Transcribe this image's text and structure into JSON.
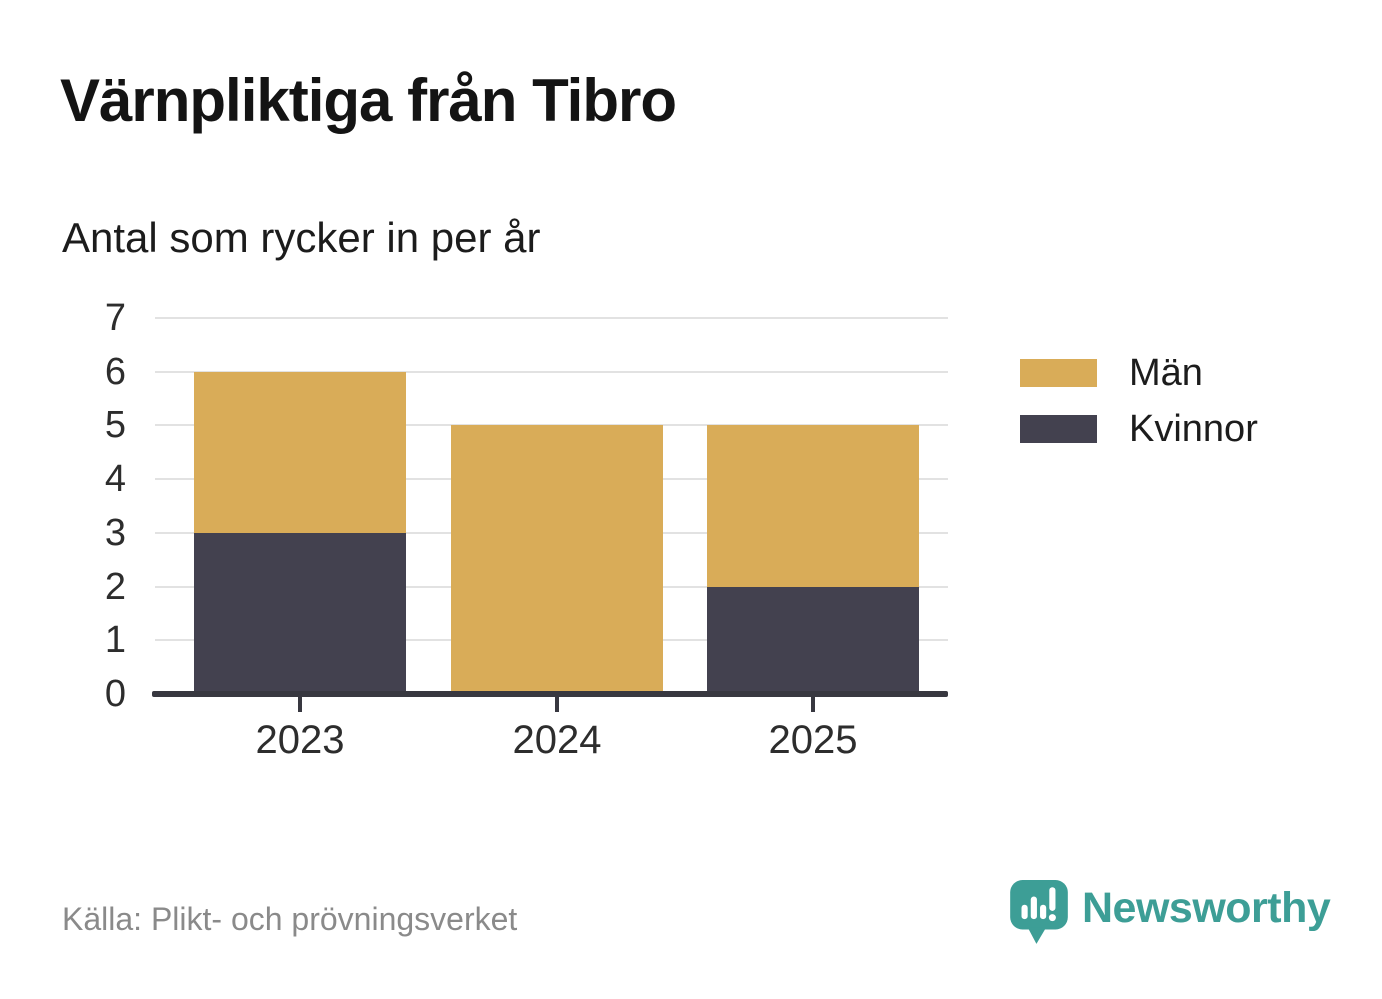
{
  "header": {
    "title": "Värnpliktiga från Tibro",
    "subtitle": "Antal som rycker in per år"
  },
  "legend": {
    "items": [
      {
        "label": "Män",
        "color": "#d9ac58"
      },
      {
        "label": "Kvinnor",
        "color": "#43414f"
      }
    ]
  },
  "chart_data": {
    "type": "bar",
    "stacked": true,
    "title": "Värnpliktiga från Tibro",
    "subtitle": "Antal som rycker in per år",
    "categories": [
      "2023",
      "2024",
      "2025"
    ],
    "series": [
      {
        "name": "Kvinnor",
        "color": "#43414f",
        "values": [
          3,
          0,
          2
        ]
      },
      {
        "name": "Män",
        "color": "#d9ac58",
        "values": [
          3,
          5,
          3
        ]
      }
    ],
    "stack_order_bottom_to_top": [
      "Kvinnor",
      "Män"
    ],
    "totals": [
      6,
      5,
      5
    ],
    "xlabel": "",
    "ylabel": "",
    "ylim": [
      0,
      7
    ],
    "yticks": [
      0,
      1,
      2,
      3,
      4,
      5,
      6,
      7
    ],
    "grid": true,
    "legend_position": "right"
  },
  "colors": {
    "men": "#d9ac58",
    "women": "#43414f",
    "axis": "#383840",
    "gridline": "#e2e2e2",
    "tick_text": "#2d2d2d",
    "muted_text": "#8a8a8a",
    "brand_teal": "#3d9e96"
  },
  "footer": {
    "source": "Källa: Plikt- och prövningsverket",
    "brand_name": "Newsworthy"
  }
}
